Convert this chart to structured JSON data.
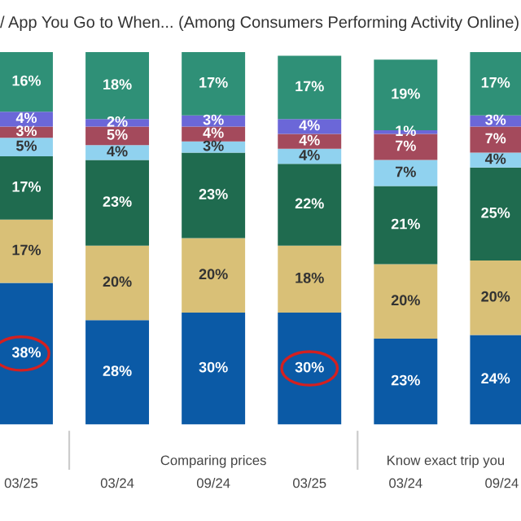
{
  "chart_data": {
    "type": "bar",
    "stacked": true,
    "grid": false,
    "legend": false,
    "title": "/ App You Go to When... (Among Consumers Performing Activity Online)",
    "categories": [
      "03/25",
      "03/24",
      "09/24",
      "03/25",
      "03/24",
      "09/24"
    ],
    "series": [
      {
        "color": "#0b5aa6",
        "values": [
          38,
          28,
          30,
          30,
          23,
          24
        ],
        "value_labels": [
          "38%",
          "28%",
          "30%",
          "30%",
          "23%",
          "24%"
        ]
      },
      {
        "color": "#d9c077",
        "values": [
          17,
          20,
          20,
          18,
          20,
          20
        ],
        "value_labels": [
          "17%",
          "20%",
          "20%",
          "18%",
          "20%",
          "20%"
        ]
      },
      {
        "color": "#1f6b4f",
        "values": [
          17,
          23,
          23,
          22,
          21,
          25
        ],
        "value_labels": [
          "17%",
          "23%",
          "23%",
          "22%",
          "21%",
          "25%"
        ]
      },
      {
        "color": "#90d2ef",
        "values": [
          5,
          4,
          3,
          4,
          7,
          4
        ],
        "value_labels": [
          "5%",
          "4%",
          "3%",
          "4%",
          "7%",
          "4%"
        ]
      },
      {
        "color": "#a44a5c",
        "values": [
          3,
          5,
          4,
          4,
          7,
          7
        ],
        "value_labels": [
          "3%",
          "5%",
          "4%",
          "4%",
          "7%",
          "7%"
        ]
      },
      {
        "color": "#6b67d8",
        "values": [
          4,
          2,
          3,
          4,
          1,
          3
        ],
        "value_labels": [
          "4%",
          "2%",
          "3%",
          "4%",
          "1%",
          "3%"
        ]
      },
      {
        "color": "#2f9077",
        "values": [
          16,
          18,
          17,
          17,
          19,
          17
        ],
        "value_labels": [
          "16%",
          "18%",
          "17%",
          "17%",
          "19%",
          "17%"
        ]
      }
    ],
    "annotations": [
      "Comparing prices",
      "Know exact trip you"
    ]
  }
}
